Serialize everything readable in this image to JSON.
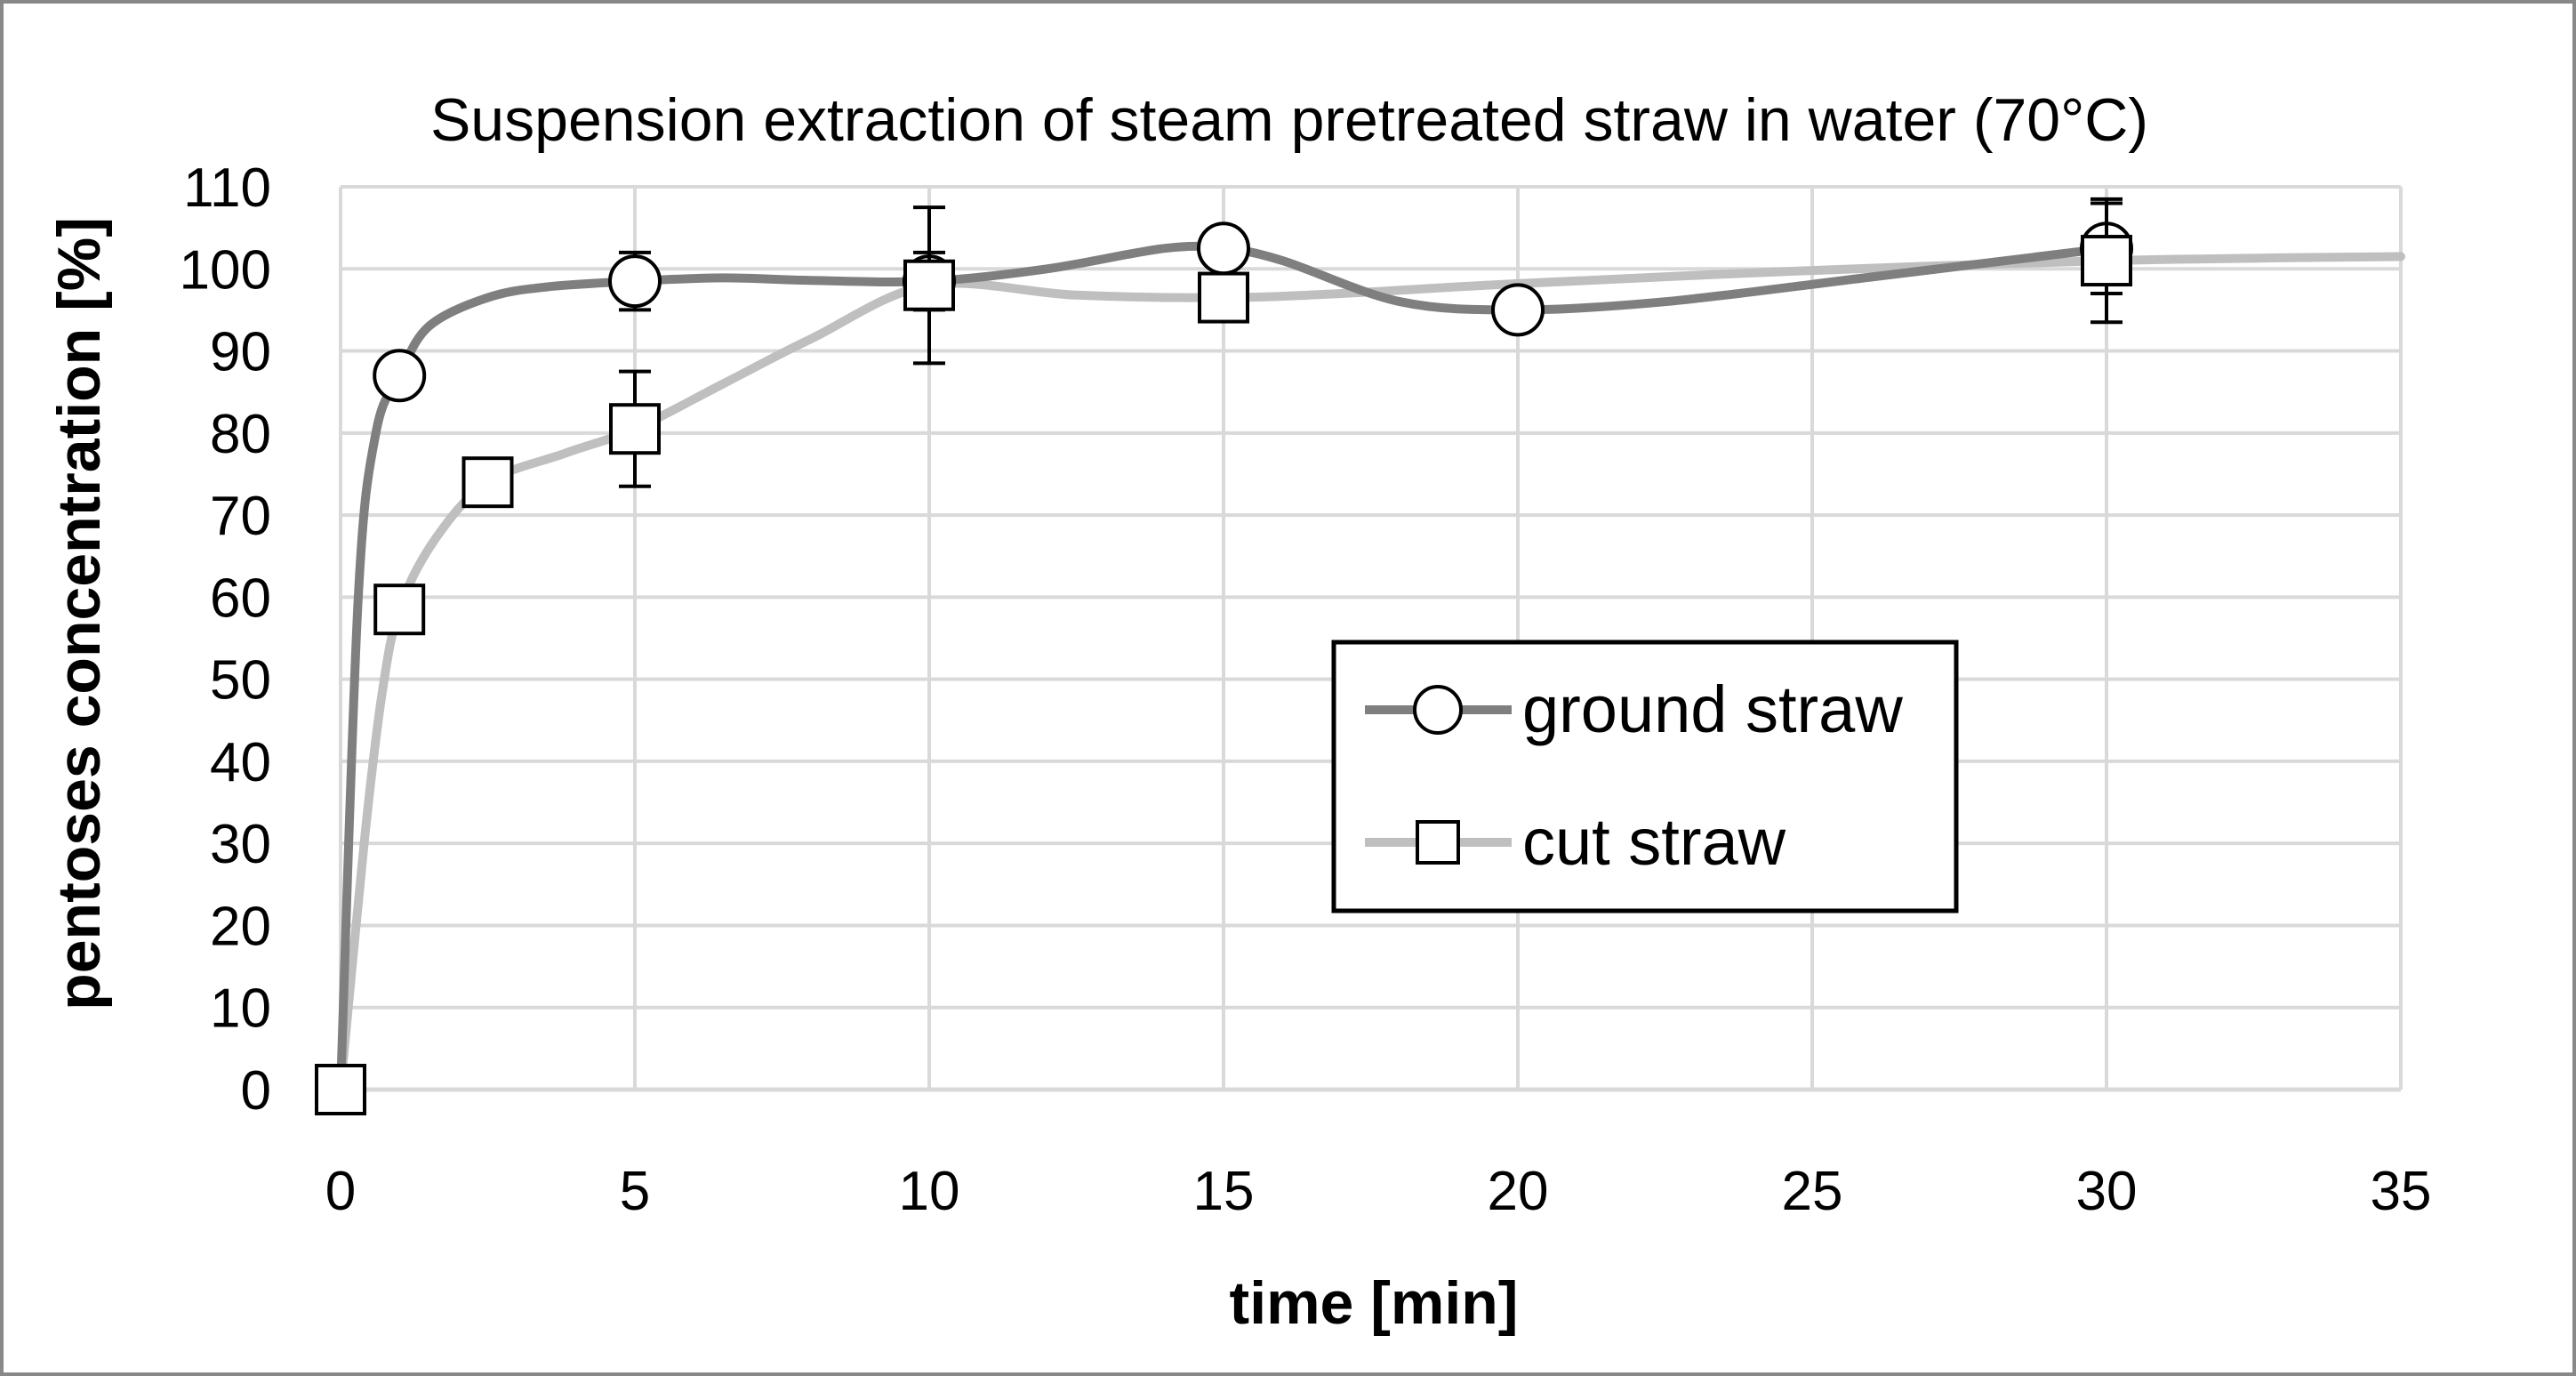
{
  "chart_data": {
    "type": "line",
    "title": "Suspension extraction of steam pretreated straw in water (70°C)",
    "xlabel": "time [min]",
    "ylabel": "pentoses concentration [%]",
    "xlim": [
      0,
      35
    ],
    "ylim": [
      0,
      110
    ],
    "xticks": [
      "0",
      "5",
      "10",
      "15",
      "20",
      "25",
      "30",
      "35"
    ],
    "yticks": [
      "0",
      "10",
      "20",
      "30",
      "40",
      "50",
      "60",
      "70",
      "80",
      "90",
      "100",
      "110"
    ],
    "grid": true,
    "legend_position": "center-right",
    "series": [
      {
        "name": "ground straw",
        "color": "#7f7f7f",
        "marker": "circle",
        "x": [
          1,
          5,
          10,
          15,
          20,
          30
        ],
        "y": [
          87,
          98.5,
          98.5,
          102.5,
          95,
          102.5
        ],
        "error": [
          null,
          3.5,
          3.5,
          null,
          null,
          5.5
        ],
        "curve": [
          [
            0,
            0
          ],
          [
            0.3,
            60
          ],
          [
            0.6,
            80
          ],
          [
            1,
            87
          ],
          [
            1.5,
            93
          ],
          [
            2.5,
            96.5
          ],
          [
            3.5,
            97.8
          ],
          [
            5,
            98.5
          ],
          [
            6.5,
            98.9
          ],
          [
            8,
            98.6
          ],
          [
            10,
            98.5
          ],
          [
            12,
            100
          ],
          [
            14,
            102.5
          ],
          [
            15,
            102.5
          ],
          [
            16,
            101
          ],
          [
            18,
            96
          ],
          [
            20,
            95
          ],
          [
            22.5,
            96
          ],
          [
            26,
            99
          ],
          [
            30,
            102.5
          ]
        ]
      },
      {
        "name": "cut straw",
        "color": "#bfbfbf",
        "marker": "square",
        "x": [
          0,
          1,
          2.5,
          5,
          10,
          15,
          30
        ],
        "y": [
          0,
          58.5,
          74,
          80.5,
          98,
          96.5,
          101
        ],
        "error": [
          null,
          null,
          null,
          7,
          9.5,
          null,
          7.5
        ],
        "curve": [
          [
            0,
            0
          ],
          [
            0.4,
            30
          ],
          [
            0.7,
            48
          ],
          [
            1,
            58.5
          ],
          [
            1.6,
            67
          ],
          [
            2.5,
            74
          ],
          [
            3.8,
            77.5
          ],
          [
            5,
            80.5
          ],
          [
            6.5,
            86
          ],
          [
            8,
            91.5
          ],
          [
            10,
            98
          ],
          [
            12.5,
            96.8
          ],
          [
            15,
            96.5
          ],
          [
            17,
            97
          ],
          [
            20,
            98.2
          ],
          [
            25,
            99.8
          ],
          [
            30,
            101
          ],
          [
            35,
            101.5
          ]
        ]
      }
    ]
  }
}
